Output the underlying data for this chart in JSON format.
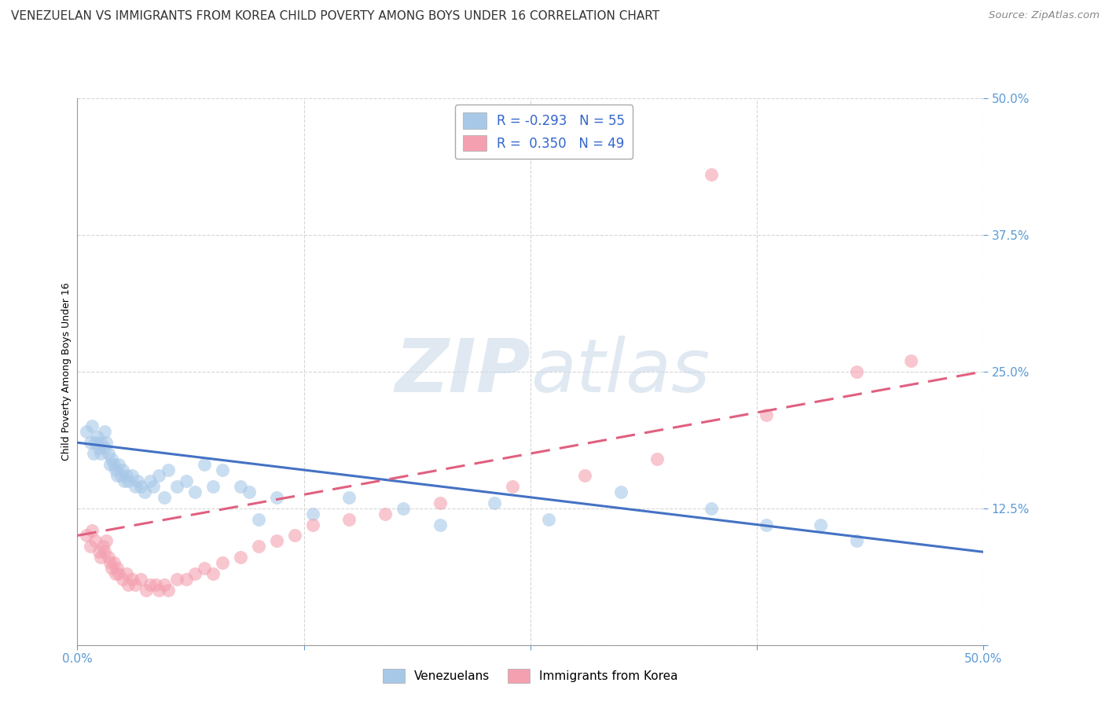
{
  "title": "VENEZUELAN VS IMMIGRANTS FROM KOREA CHILD POVERTY AMONG BOYS UNDER 16 CORRELATION CHART",
  "source": "Source: ZipAtlas.com",
  "ylabel": "Child Poverty Among Boys Under 16",
  "xlim": [
    0.0,
    0.5
  ],
  "ylim": [
    0.0,
    0.5
  ],
  "blue_color": "#a8c8e8",
  "pink_color": "#f4a0b0",
  "blue_line_color": "#4472c4",
  "pink_line_color": "#e06080",
  "grid_color": "#cccccc",
  "background_color": "#ffffff",
  "tick_label_color": "#5b9bd5",
  "title_fontsize": 11,
  "axis_label_fontsize": 9,
  "tick_fontsize": 11,
  "venezuelans_x": [
    0.005,
    0.007,
    0.008,
    0.009,
    0.01,
    0.011,
    0.012,
    0.013,
    0.013,
    0.015,
    0.015,
    0.016,
    0.017,
    0.018,
    0.019,
    0.02,
    0.021,
    0.022,
    0.023,
    0.024,
    0.025,
    0.026,
    0.027,
    0.028,
    0.03,
    0.032,
    0.033,
    0.035,
    0.037,
    0.04,
    0.042,
    0.045,
    0.048,
    0.05,
    0.055,
    0.06,
    0.065,
    0.07,
    0.075,
    0.08,
    0.09,
    0.095,
    0.1,
    0.11,
    0.13,
    0.15,
    0.18,
    0.2,
    0.23,
    0.26,
    0.3,
    0.35,
    0.38,
    0.41,
    0.43
  ],
  "venezuelans_y": [
    0.195,
    0.185,
    0.2,
    0.175,
    0.185,
    0.19,
    0.18,
    0.185,
    0.175,
    0.195,
    0.18,
    0.185,
    0.175,
    0.165,
    0.17,
    0.165,
    0.16,
    0.155,
    0.165,
    0.155,
    0.16,
    0.15,
    0.155,
    0.15,
    0.155,
    0.145,
    0.15,
    0.145,
    0.14,
    0.15,
    0.145,
    0.155,
    0.135,
    0.16,
    0.145,
    0.15,
    0.14,
    0.165,
    0.145,
    0.16,
    0.145,
    0.14,
    0.115,
    0.135,
    0.12,
    0.135,
    0.125,
    0.11,
    0.13,
    0.115,
    0.14,
    0.125,
    0.11,
    0.11,
    0.095
  ],
  "korea_x": [
    0.005,
    0.007,
    0.008,
    0.01,
    0.012,
    0.013,
    0.014,
    0.015,
    0.016,
    0.017,
    0.018,
    0.019,
    0.02,
    0.021,
    0.022,
    0.023,
    0.025,
    0.027,
    0.028,
    0.03,
    0.032,
    0.035,
    0.038,
    0.04,
    0.043,
    0.045,
    0.048,
    0.05,
    0.055,
    0.06,
    0.065,
    0.07,
    0.075,
    0.08,
    0.09,
    0.1,
    0.11,
    0.12,
    0.13,
    0.15,
    0.17,
    0.2,
    0.24,
    0.28,
    0.32,
    0.35,
    0.38,
    0.43,
    0.46
  ],
  "korea_y": [
    0.1,
    0.09,
    0.105,
    0.095,
    0.085,
    0.08,
    0.09,
    0.085,
    0.095,
    0.08,
    0.075,
    0.07,
    0.075,
    0.065,
    0.07,
    0.065,
    0.06,
    0.065,
    0.055,
    0.06,
    0.055,
    0.06,
    0.05,
    0.055,
    0.055,
    0.05,
    0.055,
    0.05,
    0.06,
    0.06,
    0.065,
    0.07,
    0.065,
    0.075,
    0.08,
    0.09,
    0.095,
    0.1,
    0.11,
    0.115,
    0.12,
    0.13,
    0.145,
    0.155,
    0.17,
    0.43,
    0.21,
    0.25,
    0.26
  ],
  "ven_line_x0": 0.0,
  "ven_line_x1": 0.5,
  "ven_line_y0": 0.185,
  "ven_line_y1": 0.085,
  "kor_line_x0": 0.0,
  "kor_line_x1": 0.5,
  "kor_line_y0": 0.1,
  "kor_line_y1": 0.25
}
